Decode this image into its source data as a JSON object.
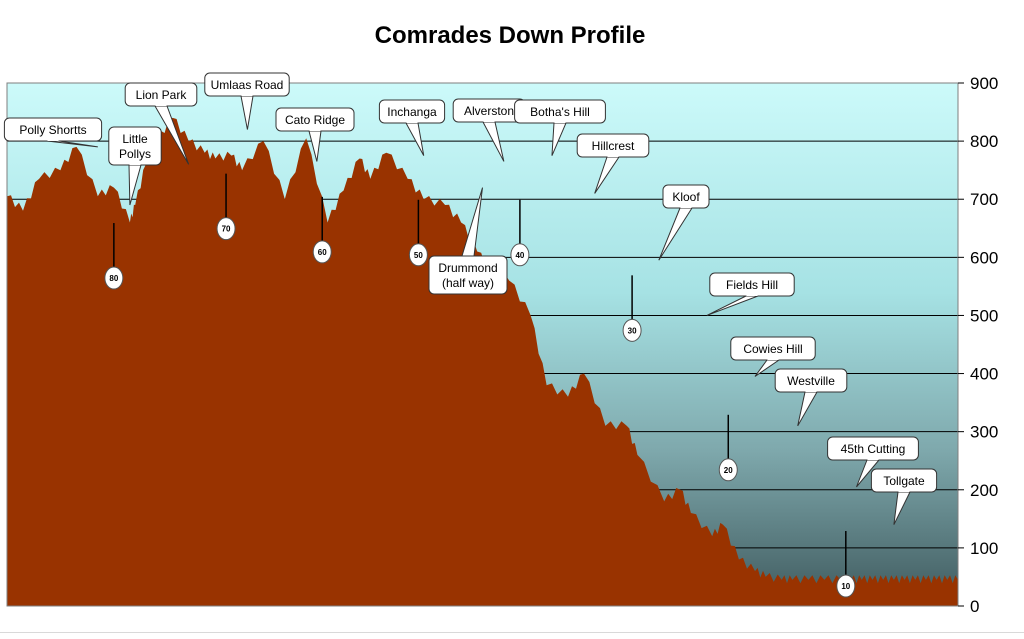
{
  "chart_data": {
    "type": "area",
    "title": "Comrades Down Profile",
    "xlabel": "",
    "ylabel": "",
    "ylim": [
      0,
      900
    ],
    "yticks": [
      0,
      100,
      200,
      300,
      400,
      500,
      600,
      700,
      800,
      900
    ],
    "y_axis_side": "right",
    "grid": true,
    "x_unit": "km run",
    "xlim": [
      0,
      89
    ],
    "series": [
      {
        "x": [
          0,
          1.5,
          3,
          5,
          6.5,
          8.5,
          10,
          11.5,
          12,
          13,
          14,
          15.5,
          17,
          18.5,
          19.5,
          21,
          22,
          24,
          26,
          28,
          30,
          31.5,
          33,
          34,
          35.5,
          37.5,
          39,
          41,
          42.5,
          44,
          45.5,
          47,
          49,
          50.5,
          52.5,
          54,
          56,
          58,
          59,
          61.5,
          63,
          64,
          66,
          67,
          68.5,
          70,
          71,
          72.5,
          73.5,
          75,
          76.5,
          78,
          79,
          80,
          81,
          82,
          83,
          84,
          85,
          86,
          87,
          88,
          89
        ],
        "values": [
          705,
          680,
          735,
          750,
          790,
          705,
          720,
          660,
          690,
          760,
          800,
          840,
          800,
          780,
          770,
          775,
          750,
          800,
          700,
          805,
          660,
          715,
          770,
          735,
          780,
          735,
          700,
          690,
          660,
          610,
          570,
          560,
          500,
          380,
          360,
          400,
          310,
          310,
          260,
          180,
          200,
          160,
          120,
          140,
          80,
          60,
          50,
          45,
          45,
          45,
          45,
          45,
          45,
          45,
          45,
          45,
          45,
          45,
          45,
          45,
          45,
          45,
          45
        ]
      }
    ],
    "annotations": [
      {
        "label": "Polly Shortts",
        "x": 8.5,
        "y": 790
      },
      {
        "label": "Little\nPollys",
        "x": 11.5,
        "y": 690
      },
      {
        "label": "Lion Park",
        "x": 17,
        "y": 760
      },
      {
        "label": "Umlaas Road",
        "x": 22.5,
        "y": 820
      },
      {
        "label": "Cato Ridge",
        "x": 29,
        "y": 765
      },
      {
        "label": "Inchanga",
        "x": 39,
        "y": 775
      },
      {
        "label": "Drummond\n(half way)",
        "x": 44.5,
        "y": 720
      },
      {
        "label": "Alverston",
        "x": 46.5,
        "y": 765
      },
      {
        "label": "Botha's Hill",
        "x": 51,
        "y": 775
      },
      {
        "label": "Hillcrest",
        "x": 55,
        "y": 710
      },
      {
        "label": "Kloof",
        "x": 61,
        "y": 595
      },
      {
        "label": "Fields Hill",
        "x": 65.5,
        "y": 500
      },
      {
        "label": "Cowies Hill",
        "x": 70,
        "y": 395
      },
      {
        "label": "Westville",
        "x": 74,
        "y": 310
      },
      {
        "label": "45th Cutting",
        "x": 79.5,
        "y": 205
      },
      {
        "label": "Tollgate",
        "x": 83,
        "y": 140
      }
    ],
    "distance_markers": [
      {
        "label": "80",
        "x": 10,
        "y": 690
      },
      {
        "label": "70",
        "x": 20.5,
        "y": 775
      },
      {
        "label": "60",
        "x": 29.5,
        "y": 735
      },
      {
        "label": "50",
        "x": 38.5,
        "y": 730
      },
      {
        "label": "40",
        "x": 48,
        "y": 730
      },
      {
        "label": "30",
        "x": 58.5,
        "y": 600
      },
      {
        "label": "20",
        "x": 67.5,
        "y": 360
      },
      {
        "label": "10",
        "x": 78.5,
        "y": 160
      }
    ]
  }
}
